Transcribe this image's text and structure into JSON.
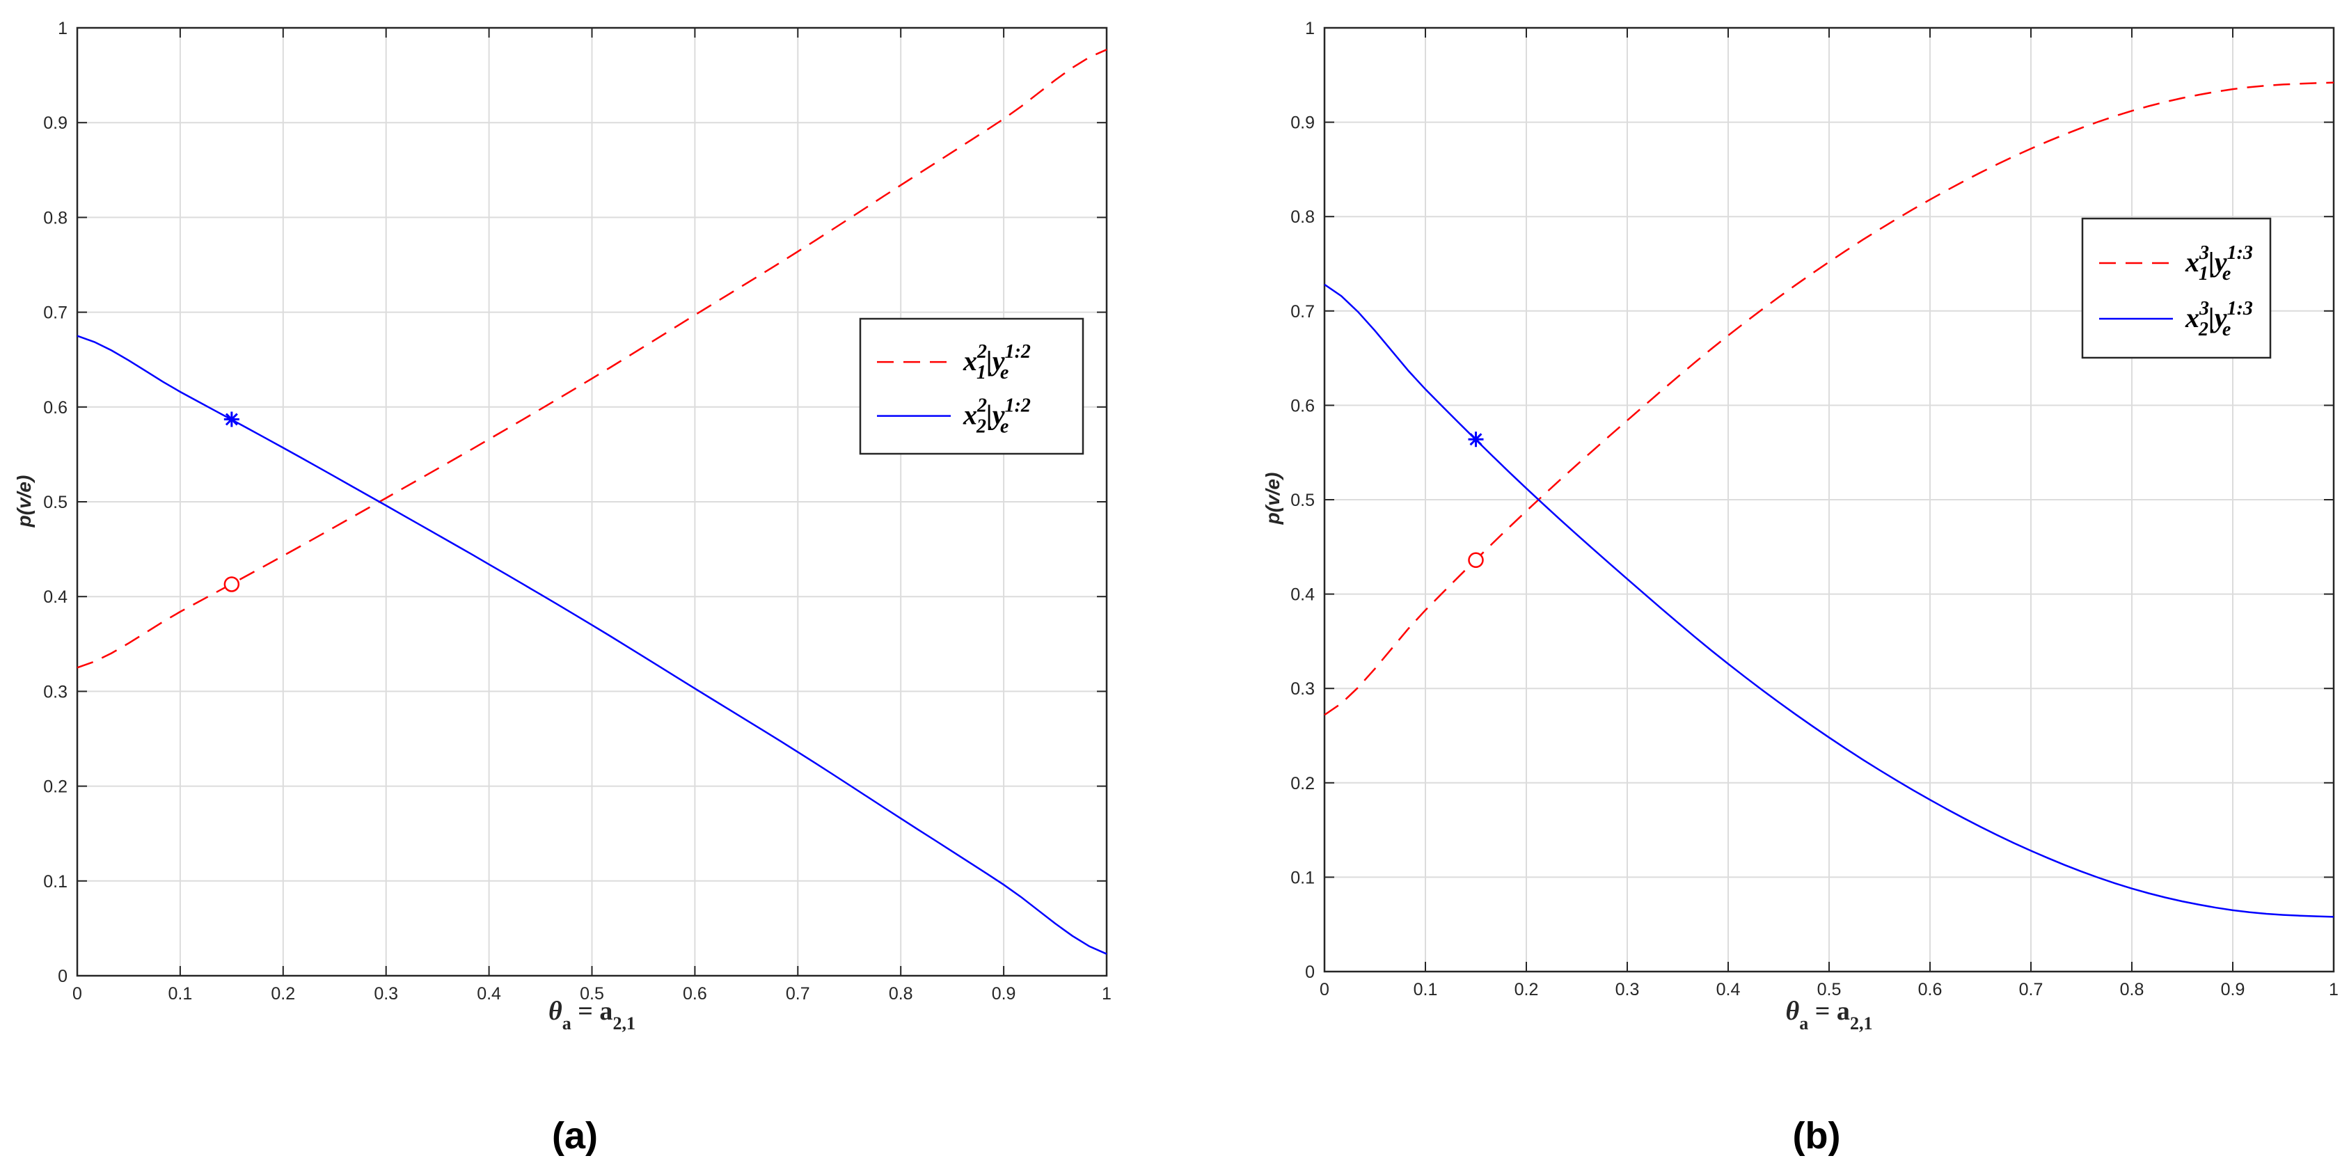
{
  "chart_data": [
    {
      "type": "line",
      "panel": "a",
      "caption": "(a)",
      "xlabel": {
        "theta": "θ",
        "theta_sub": "a",
        "eq": " = a",
        "eq_sub": "2,1"
      },
      "ylabel": "p(v/e)",
      "xlim": [
        0,
        1
      ],
      "ylim": [
        0,
        1
      ],
      "xticks": [
        "0",
        "0.1",
        "0.2",
        "0.3",
        "0.4",
        "0.5",
        "0.6",
        "0.7",
        "0.8",
        "0.9",
        "1"
      ],
      "yticks": [
        "0",
        "0.1",
        "0.2",
        "0.3",
        "0.4",
        "0.5",
        "0.6",
        "0.7",
        "0.8",
        "0.9",
        "1"
      ],
      "grid": true,
      "legend_position": "right",
      "series": [
        {
          "legend": {
            "base": "x",
            "sup": "2",
            "sub": "1",
            "mid": "|y",
            "sup2": "1:2",
            "sub2": "e"
          },
          "color": "#ff0000",
          "style": "dashed",
          "x": [
            0,
            0.1,
            0.2,
            0.3,
            0.4,
            0.5,
            0.6,
            0.7,
            0.8,
            0.9,
            1.0
          ],
          "y": [
            0.325,
            0.384,
            0.443,
            0.504,
            0.566,
            0.63,
            0.697,
            0.764,
            0.834,
            0.904,
            0.977
          ],
          "marker": {
            "symbol": "circle",
            "x": 0.15,
            "y": 0.413
          }
        },
        {
          "legend": {
            "base": "x",
            "sup": "2",
            "sub": "2",
            "mid": "|y",
            "sup2": "1:2",
            "sub2": "e"
          },
          "color": "#0000ff",
          "style": "solid",
          "x": [
            0,
            0.1,
            0.2,
            0.3,
            0.4,
            0.5,
            0.6,
            0.7,
            0.8,
            0.9,
            1.0
          ],
          "y": [
            0.675,
            0.616,
            0.557,
            0.496,
            0.434,
            0.37,
            0.303,
            0.236,
            0.166,
            0.096,
            0.023
          ],
          "marker": {
            "symbol": "asterisk",
            "x": 0.15,
            "y": 0.587
          }
        }
      ]
    },
    {
      "type": "line",
      "panel": "b",
      "caption": "(b)",
      "xlabel": {
        "theta": "θ",
        "theta_sub": "a",
        "eq": " = a",
        "eq_sub": "2,1"
      },
      "ylabel": "p(v/e)",
      "xlim": [
        0,
        1
      ],
      "ylim": [
        0,
        1
      ],
      "xticks": [
        "0",
        "0.1",
        "0.2",
        "0.3",
        "0.4",
        "0.5",
        "0.6",
        "0.7",
        "0.8",
        "0.9",
        "1"
      ],
      "yticks": [
        "0",
        "0.1",
        "0.2",
        "0.3",
        "0.4",
        "0.5",
        "0.6",
        "0.7",
        "0.8",
        "0.9",
        "1"
      ],
      "grid": true,
      "legend_position": "top-right",
      "series": [
        {
          "legend": {
            "base": "x",
            "sup": "3",
            "sub": "1",
            "mid": "|y",
            "sup2": "1:3",
            "sub2": "e"
          },
          "color": "#ff0000",
          "style": "dashed",
          "x": [
            0,
            0.1,
            0.2,
            0.3,
            0.4,
            0.5,
            0.6,
            0.7,
            0.8,
            0.9,
            1.0
          ],
          "y": [
            0.272,
            0.383,
            0.488,
            0.584,
            0.674,
            0.752,
            0.818,
            0.872,
            0.912,
            0.935,
            0.942
          ],
          "marker": {
            "symbol": "circle",
            "x": 0.15,
            "y": 0.436
          }
        },
        {
          "legend": {
            "base": "x",
            "sup": "3",
            "sub": "2",
            "mid": "|y",
            "sup2": "1:3",
            "sub2": "e"
          },
          "color": "#0000ff",
          "style": "solid",
          "x": [
            0,
            0.1,
            0.2,
            0.3,
            0.4,
            0.5,
            0.6,
            0.7,
            0.8,
            0.9,
            1.0
          ],
          "y": [
            0.728,
            0.617,
            0.512,
            0.416,
            0.326,
            0.248,
            0.182,
            0.128,
            0.088,
            0.065,
            0.058
          ],
          "marker": {
            "symbol": "asterisk",
            "x": 0.15,
            "y": 0.564
          }
        }
      ]
    }
  ]
}
